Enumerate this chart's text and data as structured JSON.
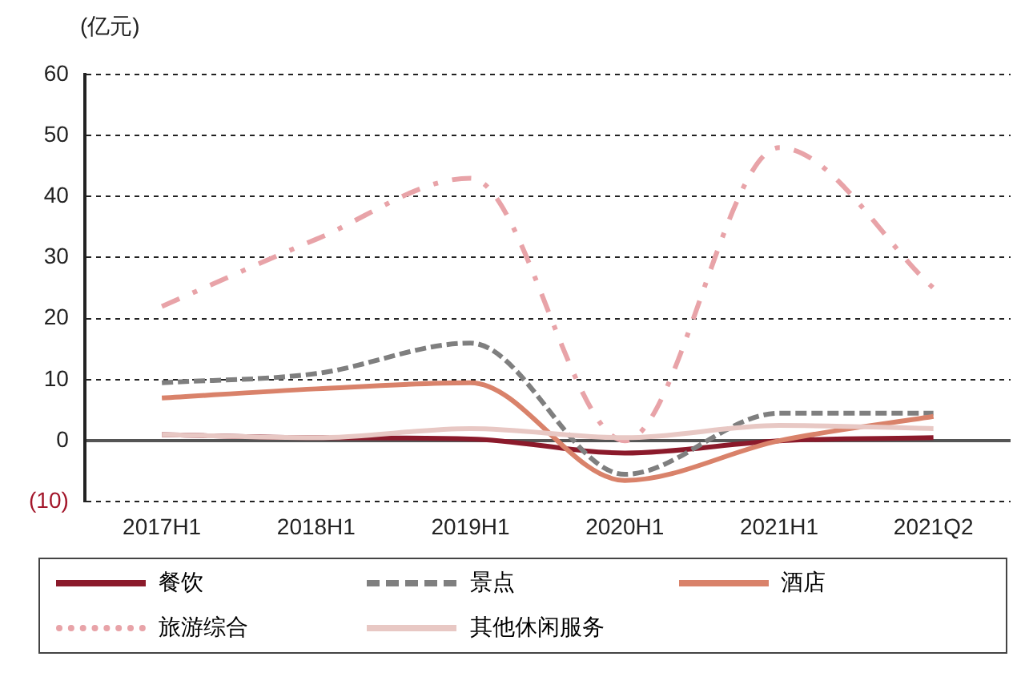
{
  "chart_data": {
    "type": "line",
    "ylabel": "(亿元)",
    "categories": [
      "2017H1",
      "2018H1",
      "2019H1",
      "2020H1",
      "2021H1",
      "2021Q2"
    ],
    "series": [
      {
        "name": "餐饮",
        "color": "#8b1a2b",
        "line_style": "solid",
        "values": [
          1,
          0.5,
          0.3,
          -2,
          0,
          0.5
        ]
      },
      {
        "name": "景点",
        "color": "#7f7f7f",
        "line_style": "dashed",
        "values": [
          9.5,
          11,
          16,
          -5.5,
          4.5,
          4.5
        ]
      },
      {
        "name": "酒店",
        "color": "#d9826a",
        "line_style": "solid",
        "values": [
          7,
          8.5,
          9.5,
          -6.5,
          0,
          4
        ]
      },
      {
        "name": "旅游综合",
        "color": "#e8a3a8",
        "line_style": "dotted",
        "values": [
          22,
          33,
          43,
          0,
          48,
          25
        ]
      },
      {
        "name": "其他休闲服务",
        "color": "#e8c8c4",
        "line_style": "solid",
        "values": [
          1,
          0.5,
          2,
          0.5,
          2.5,
          2
        ]
      }
    ],
    "ylim": [
      -10,
      60
    ],
    "yticks": [
      {
        "value": -10,
        "label": "(10)"
      },
      0,
      10,
      20,
      30,
      40,
      50,
      60
    ],
    "grid": "y",
    "legend": "bottom",
    "marker": "none"
  }
}
